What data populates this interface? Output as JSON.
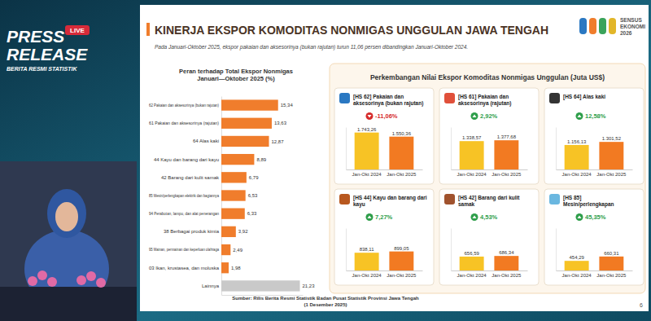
{
  "page": {
    "logo_title": [
      "PRESS",
      "RELEASE"
    ],
    "logo_badge": "LIVE",
    "logo_subtitle": "BERITA RESMI STATISTIK",
    "title": "KINERJA EKSPOR KOMODITAS NONMIGAS UNGGULAN JAWA TENGAH",
    "subtitle": "Pada Januari-Oktober 2025, ekspor pakaian dan aksesorinya (bukan rajutan) turun 11,06 persen dibandingkan Januari-Oktober 2024.",
    "sensus_logo": [
      "SENSUS",
      "EKONOMI",
      "2026"
    ],
    "panel_title": "Perkembangan Nilai Ekspor Komoditas Nonmigas Unggulan (Juta US$)",
    "source": [
      "Sumber: Rilis Berita Resmi Statistik Badan Pusat Statistik Provinsi Jawa Tengah",
      "(1 Desember 2025)"
    ],
    "page_number": "6"
  },
  "chart_data": [
    {
      "type": "bar",
      "orientation": "horizontal",
      "title": [
        "Peran terhadap Total Ekspor Nonmigas",
        "Januari—Oktober  2025 (%)"
      ],
      "categories": [
        "62 Pakaian dan aksesorinya (bukan rajutan)",
        "61 Pakaian dan aksesorinya (rajutan)",
        "64 Alas kaki",
        "44 Kayu dan barang dari kayu",
        "42 Barang dari kulit samak",
        "85 Mesin/perlengkapan elektrik dan bagiannya",
        "94 Perabotan, lampu, dan alat penerangan",
        "38 Berbagai produk kimia",
        "95 Mainan, permainan dan keperluan olahraga",
        "03 Ikan, krustasea, dan moluska",
        "Lainnya"
      ],
      "values": [
        15.34,
        13.63,
        12.87,
        8.89,
        6.79,
        6.53,
        6.33,
        3.92,
        2.49,
        1.98,
        21.23
      ],
      "value_labels": [
        "15,34",
        "13,63",
        "12,87",
        "8,89",
        "6,79",
        "6,53",
        "6,33",
        "3,92",
        "2,49",
        "1,98",
        "21,23"
      ],
      "colors": [
        "#f07d2c",
        "#f07d2c",
        "#f07d2c",
        "#f07d2c",
        "#f07d2c",
        "#f07d2c",
        "#f07d2c",
        "#f07d2c",
        "#f07d2c",
        "#f07d2c",
        "#c9c9c9"
      ],
      "xlim": [
        0,
        22
      ],
      "data_labels": true,
      "tick_labels": "y"
    },
    {
      "type": "bar",
      "title": [
        "[HS 62] Pakaian dan",
        "aksesorinya (bukan rajutan)"
      ],
      "annotation": "-11,06%",
      "categories": [
        "Jan-Okt 2024",
        "Jan-Okt 2025"
      ],
      "values": [
        1743.26,
        1550.36
      ],
      "value_labels": [
        "1.743,26",
        "1.550,36"
      ],
      "colors": [
        "#f7c325",
        "#f27a22"
      ],
      "ylim": [
        0,
        2000
      ],
      "data_labels": true,
      "tick_labels": "x"
    },
    {
      "type": "bar",
      "title": [
        "[HS 61] Pakaian dan",
        "aksesorinya (rajutan)"
      ],
      "annotation": "2,92%",
      "categories": [
        "Jan-Okt 2024",
        "Jan-Okt 2025"
      ],
      "values": [
        1338.57,
        1377.68
      ],
      "value_labels": [
        "1.338,57",
        "1.377,68"
      ],
      "colors": [
        "#f7c325",
        "#f27a22"
      ],
      "ylim": [
        0,
        2000
      ],
      "data_labels": true,
      "tick_labels": "x"
    },
    {
      "type": "bar",
      "title": [
        "[HS 64] Alas kaki"
      ],
      "annotation": "12,58%",
      "categories": [
        "Jan-Okt 2024",
        "Jan-Okt 2025"
      ],
      "values": [
        1156.13,
        1301.52
      ],
      "value_labels": [
        "1.156,13",
        "1.301,52"
      ],
      "colors": [
        "#f7c325",
        "#f27a22"
      ],
      "ylim": [
        0,
        2000
      ],
      "data_labels": true,
      "tick_labels": "x"
    },
    {
      "type": "bar",
      "title": [
        "[HS 44] Kayu dan barang dari",
        "kayu"
      ],
      "annotation": "7,27%",
      "categories": [
        "Jan-Okt 2024",
        "Jan-Okt 2025"
      ],
      "values": [
        838.11,
        899.05
      ],
      "value_labels": [
        "838,11",
        "899,05"
      ],
      "colors": [
        "#f7c325",
        "#f27a22"
      ],
      "ylim": [
        0,
        2000
      ],
      "data_labels": true,
      "tick_labels": "x"
    },
    {
      "type": "bar",
      "title": [
        "[HS 42] Barang dari kulit",
        "samak"
      ],
      "annotation": "4,53%",
      "categories": [
        "Jan-Okt 2024",
        "Jan-Okt 2025"
      ],
      "values": [
        656.59,
        686.34
      ],
      "value_labels": [
        "656,59",
        "686,34"
      ],
      "colors": [
        "#f7c325",
        "#f27a22"
      ],
      "ylim": [
        0,
        2000
      ],
      "data_labels": true,
      "tick_labels": "x"
    },
    {
      "type": "bar",
      "title": [
        "[HS 85]",
        "Mesin/perlengkapan"
      ],
      "annotation": "45,35%",
      "categories": [
        "Jan-Okt 2024",
        "Jan-Okt 2025"
      ],
      "values": [
        454.29,
        660.31
      ],
      "value_labels": [
        "454,29",
        "660,31"
      ],
      "colors": [
        "#f7c325",
        "#f27a22"
      ],
      "ylim": [
        0,
        2000
      ],
      "data_labels": true,
      "tick_labels": "x"
    }
  ]
}
